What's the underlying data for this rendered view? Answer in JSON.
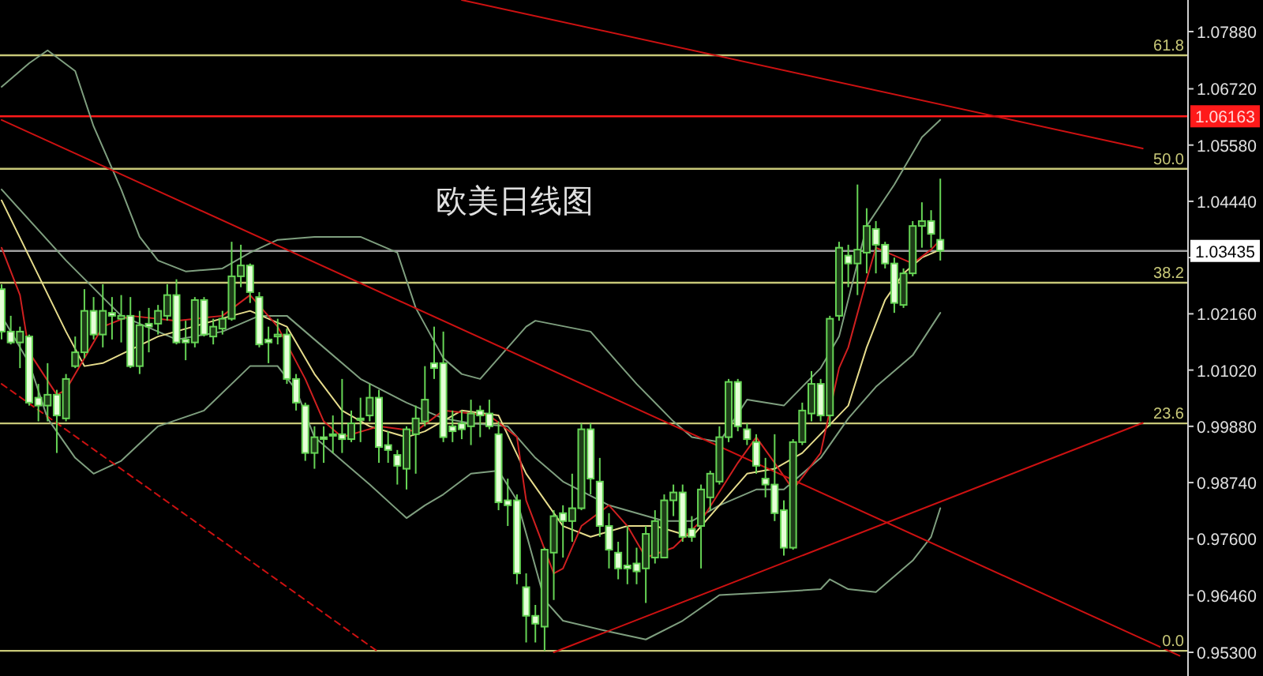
{
  "chart_data": {
    "type": "candlestick",
    "title": "欧美日线图",
    "categories": [
      null,
      null,
      null,
      null,
      null,
      null,
      null,
      null,
      null,
      null,
      null,
      null,
      null,
      null,
      null,
      null,
      null,
      null,
      null,
      null,
      null,
      null,
      null,
      null,
      null,
      null,
      null,
      null,
      null,
      null,
      null,
      null,
      null,
      null,
      null,
      null,
      null,
      null,
      null,
      null,
      null,
      null,
      null,
      null,
      null,
      null,
      null,
      null,
      null,
      null,
      null,
      null,
      null,
      null,
      null,
      null,
      null,
      null,
      null,
      null,
      null,
      null,
      null,
      null,
      null,
      null,
      null,
      null,
      null,
      null,
      null,
      null,
      null,
      null,
      null,
      null,
      null,
      null,
      null,
      null,
      null,
      null,
      null,
      null,
      null,
      null,
      null,
      null,
      null,
      null,
      null,
      null,
      null,
      null,
      null,
      null,
      null,
      null,
      null,
      null,
      null,
      null,
      null,
      null,
      null,
      null,
      null,
      null,
      null,
      null,
      null,
      null,
      null,
      null,
      null,
      null,
      null,
      null,
      null,
      null,
      null,
      null,
      null,
      null,
      null,
      null,
      null,
      null,
      null
    ],
    "ylim": [
      0.9482,
      1.0852
    ],
    "yticks": [
      {
        "value": 1.0788,
        "label": "1.07880"
      },
      {
        "value": 1.0672,
        "label": "1.06720"
      },
      {
        "value": 1.0558,
        "label": "1.05580"
      },
      {
        "value": 1.0444,
        "label": "1.04440"
      },
      {
        "value": 1.033,
        "label": null
      },
      {
        "value": 1.0216,
        "label": "1.02160"
      },
      {
        "value": 1.0102,
        "label": "1.01020"
      },
      {
        "value": 0.9988,
        "label": "0.99880"
      },
      {
        "value": 0.9874,
        "label": "0.98740"
      },
      {
        "value": 0.976,
        "label": "0.97600"
      },
      {
        "value": 0.9646,
        "label": "0.96460"
      },
      {
        "value": 0.953,
        "label": "0.95300"
      }
    ],
    "tick_labels": "y",
    "grid": false,
    "legend": false,
    "ref_lines": [
      {
        "axis": "y",
        "value": 1.074,
        "color": "#c8c878"
      },
      {
        "axis": "y",
        "value": 1.051,
        "color": "#c8c878"
      },
      {
        "axis": "y",
        "value": 1.0279,
        "color": "#c8c878"
      },
      {
        "axis": "y",
        "value": 0.9994,
        "color": "#c8c878"
      },
      {
        "axis": "y",
        "value": 0.9533,
        "color": "#c8c878"
      },
      {
        "axis": "y",
        "value": 1.06163,
        "label": "1.06163",
        "color": "#ff1a1a"
      },
      {
        "axis": "y",
        "value": 1.03435,
        "label": "1.03435",
        "color": "#a0a0a0"
      }
    ],
    "annotations": [
      {
        "text": "61.8",
        "y": 1.074
      },
      {
        "text": "50.0",
        "y": 1.051
      },
      {
        "text": "38.2",
        "y": 1.0279
      },
      {
        "text": "23.6",
        "y": 0.9994
      },
      {
        "text": "0.0",
        "y": 0.9533
      }
    ],
    "series": [
      {
        "type": "candlestick",
        "color": "#66d455",
        "ohlc": [
          [
            1.0266,
            1.0276,
            1.0164,
            1.018
          ],
          [
            1.018,
            1.0212,
            1.0154,
            1.0158
          ],
          [
            1.0158,
            1.019,
            1.0106,
            1.018
          ],
          [
            1.017,
            1.0174,
            1.003,
            1.0036
          ],
          [
            1.0046,
            1.0074,
            0.9998,
            1.003
          ],
          [
            1.003,
            1.0116,
            0.9998,
            1.0052
          ],
          [
            1.0052,
            1.0062,
            0.9934,
            1.001
          ],
          [
            1.0004,
            1.0094,
            0.9998,
            1.0084
          ],
          [
            1.011,
            1.017,
            1.0106,
            1.0138
          ],
          [
            1.0138,
            1.0266,
            1.0126,
            1.0222
          ],
          [
            1.0222,
            1.025,
            1.0164,
            1.0174
          ],
          [
            1.0174,
            1.0276,
            1.0148,
            1.0222
          ],
          [
            1.0218,
            1.025,
            1.0164,
            1.0212
          ],
          [
            1.0206,
            1.0254,
            1.0158,
            1.0212
          ],
          [
            1.0212,
            1.025,
            1.0106,
            1.011
          ],
          [
            1.011,
            1.0222,
            1.0094,
            1.0193
          ],
          [
            1.0196,
            1.0228,
            1.0138,
            1.019
          ],
          [
            1.0196,
            1.0234,
            1.0174,
            1.0222
          ],
          [
            1.0212,
            1.0276,
            1.0202,
            1.0254
          ],
          [
            1.0254,
            1.0286,
            1.0154,
            1.0158
          ],
          [
            1.0164,
            1.0202,
            1.0122,
            1.0158
          ],
          [
            1.0158,
            1.025,
            1.0148,
            1.0244
          ],
          [
            1.0244,
            1.025,
            1.017,
            1.0174
          ],
          [
            1.017,
            1.0206,
            1.0154,
            1.019
          ],
          [
            1.0186,
            1.0222,
            1.0174,
            1.0206
          ],
          [
            1.0206,
            1.0362,
            1.0202,
            1.0292
          ],
          [
            1.0292,
            1.0356,
            1.027,
            1.0314
          ],
          [
            1.0314,
            1.0318,
            1.0238,
            1.026
          ],
          [
            1.025,
            1.026,
            1.0148,
            1.0154
          ],
          [
            1.0164,
            1.019,
            1.0116,
            1.0158
          ],
          [
            1.017,
            1.0206,
            1.0154,
            1.0174
          ],
          [
            1.0174,
            1.0186,
            1.0074,
            1.0084
          ],
          [
            1.0084,
            1.0094,
            1.002,
            1.0036
          ],
          [
            1.003,
            1.0036,
            0.9918,
            0.9934
          ],
          [
            0.9934,
            0.9988,
            0.9902,
            0.9966
          ],
          [
            0.9966,
            0.9988,
            0.9914,
            0.9962
          ],
          [
            0.9969,
            1.001,
            0.9934,
            0.9972
          ],
          [
            0.9972,
            1.0084,
            0.9934,
            0.9962
          ],
          [
            0.9962,
            1.002,
            0.9956,
            0.9994
          ],
          [
            1.0004,
            1.0046,
            0.9956,
            1.0001
          ],
          [
            1.001,
            1.0074,
            0.9998,
            1.0046
          ],
          [
            1.0046,
            1.0062,
            0.9914,
            0.9946
          ],
          [
            0.995,
            0.9978,
            0.9914,
            0.994
          ],
          [
            0.993,
            0.994,
            0.987,
            0.9908
          ],
          [
            0.9902,
            0.9988,
            0.986,
            0.9982
          ],
          [
            0.9972,
            1.003,
            0.9892,
            1.0004
          ],
          [
            0.9998,
            1.011,
            0.9988,
            1.0042
          ],
          [
            1.0116,
            1.019,
            1.0084,
            1.0106
          ],
          [
            1.0116,
            1.018,
            0.9956,
            0.9966
          ],
          [
            0.9988,
            1.002,
            0.9956,
            0.9978
          ],
          [
            0.9994,
            1.002,
            0.9962,
            0.9982
          ],
          [
            0.9988,
            1.0042,
            0.995,
            1.0014
          ],
          [
            1.002,
            1.003,
            0.9966,
            1.001
          ],
          [
            1.0014,
            1.0042,
            0.9982,
            0.9988
          ],
          [
            0.9972,
            0.9998,
            0.9818,
            0.9834
          ],
          [
            0.9838,
            0.9882,
            0.9786,
            0.9828
          ],
          [
            0.9838,
            0.985,
            0.9668,
            0.969
          ],
          [
            0.9662,
            0.969,
            0.955,
            0.9604
          ],
          [
            0.9604,
            0.9626,
            0.955,
            0.9588
          ],
          [
            0.9582,
            0.9742,
            0.9533,
            0.9738
          ],
          [
            0.9732,
            0.9818,
            0.9636,
            0.9806
          ],
          [
            0.9812,
            0.9828,
            0.9722,
            0.9796
          ],
          [
            0.9796,
            0.9892,
            0.9754,
            0.9822
          ],
          [
            0.9822,
            0.9994,
            0.9818,
            0.9982
          ],
          [
            0.9982,
            0.9994,
            0.985,
            0.9882
          ],
          [
            0.9876,
            0.9924,
            0.9764,
            0.9786
          ],
          [
            0.9786,
            0.9812,
            0.97,
            0.9738
          ],
          [
            0.9732,
            0.9754,
            0.9678,
            0.97
          ],
          [
            0.9706,
            0.9786,
            0.9668,
            0.97
          ],
          [
            0.971,
            0.9742,
            0.9668,
            0.9694
          ],
          [
            0.97,
            0.9786,
            0.963,
            0.977
          ],
          [
            0.9722,
            0.9818,
            0.971,
            0.9796
          ],
          [
            0.9722,
            0.985,
            0.9722,
            0.9838
          ],
          [
            0.9838,
            0.987,
            0.9806,
            0.9854
          ],
          [
            0.9854,
            0.987,
            0.9754,
            0.9764
          ],
          [
            0.978,
            0.9806,
            0.9754,
            0.9764
          ],
          [
            0.9786,
            0.987,
            0.97,
            0.986
          ],
          [
            0.9844,
            0.9898,
            0.9818,
            0.9892
          ],
          [
            0.9876,
            0.9988,
            0.987,
            0.9966
          ],
          [
            0.9966,
            1.0084,
            0.9956,
            1.0078
          ],
          [
            1.0078,
            1.0084,
            0.9978,
            0.9988
          ],
          [
            0.9982,
            0.9994,
            0.995,
            0.9962
          ],
          [
            0.9956,
            0.9972,
            0.9892,
            0.9908
          ],
          [
            0.9882,
            0.9924,
            0.9844,
            0.987
          ],
          [
            0.987,
            0.9972,
            0.9796,
            0.9812
          ],
          [
            0.9818,
            0.9838,
            0.9726,
            0.9742
          ],
          [
            0.9742,
            0.9962,
            0.9738,
            0.9956
          ],
          [
            0.9956,
            1.0036,
            0.995,
            1.002
          ],
          [
            1.0014,
            1.01,
            0.9998,
            1.0074
          ],
          [
            1.0074,
            1.0084,
            0.9998,
            1.001
          ],
          [
            1.001,
            1.0212,
            0.9988,
            1.0206
          ],
          [
            1.0212,
            1.0362,
            1.0202,
            1.035
          ],
          [
            1.0334,
            1.0356,
            1.027,
            1.0318
          ],
          [
            1.0318,
            1.0478,
            1.0254,
            1.0346
          ],
          [
            1.034,
            1.043,
            1.0298,
            1.0394
          ],
          [
            1.0388,
            1.0404,
            1.0298,
            1.0356
          ],
          [
            1.0356,
            1.0362,
            1.0308,
            1.0318
          ],
          [
            1.0318,
            1.033,
            1.0218,
            1.0238
          ],
          [
            1.0234,
            1.0308,
            1.0228,
            1.0298
          ],
          [
            1.0298,
            1.0404,
            1.0292,
            1.0394
          ],
          [
            1.0394,
            1.0442,
            1.035,
            1.0404
          ],
          [
            1.0404,
            1.0426,
            1.035,
            1.0378
          ],
          [
            1.0366,
            1.049,
            1.0324,
            1.0344
          ],
          null,
          null,
          null,
          null,
          null,
          null,
          null,
          null,
          null,
          null,
          null,
          null,
          null,
          null,
          null,
          null,
          null,
          null,
          null,
          null,
          null,
          null,
          null,
          null,
          null,
          null
        ]
      },
      {
        "type": "line",
        "color": "#7f9f7f",
        "values": [
          1.0676,
          null,
          null,
          1.0724,
          null,
          1.075,
          null,
          null,
          1.0708,
          null,
          1.0596,
          null,
          null,
          1.0468,
          null,
          1.0372,
          null,
          1.0324,
          null,
          null,
          1.0302,
          null,
          null,
          null,
          1.0308,
          null,
          null,
          1.034,
          null,
          null,
          1.0366,
          null,
          null,
          null,
          1.0372,
          null,
          null,
          null,
          null,
          1.0372,
          null,
          null,
          null,
          1.034,
          null,
          1.0228,
          null,
          null,
          1.0126,
          null,
          1.0094,
          null,
          1.0084,
          null,
          null,
          null,
          null,
          1.019,
          1.0202,
          null,
          null,
          null,
          null,
          null,
          1.018,
          null,
          null,
          1.0116,
          null,
          1.0074,
          null,
          null,
          null,
          0.9998,
          null,
          0.9966,
          null,
          null,
          0.9956,
          null,
          null,
          1.0042,
          null,
          1.0036,
          null,
          1.003,
          null,
          null,
          null,
          1.0106,
          null,
          1.017,
          null,
          null,
          1.0394,
          null,
          null,
          1.0478,
          1.051,
          null,
          1.0574,
          null,
          1.0609,
          null,
          null,
          null,
          null,
          null,
          null,
          null,
          null,
          null,
          null,
          null,
          null,
          null,
          null,
          null,
          null,
          null,
          null,
          null,
          null,
          null,
          null,
          null,
          null,
          null,
          null
        ]
      },
      {
        "type": "line",
        "color": "#7f9f7f",
        "values": [
          1.0468,
          null,
          null,
          null,
          null,
          null,
          null,
          1.0324,
          null,
          null,
          null,
          null,
          null,
          1.0212,
          null,
          null,
          null,
          null,
          null,
          1.0164,
          null,
          null,
          null,
          null,
          1.018,
          null,
          null,
          null,
          1.0212,
          null,
          null,
          1.0212,
          null,
          null,
          1.0164,
          null,
          null,
          null,
          null,
          1.0084,
          null,
          null,
          null,
          null,
          1.0036,
          null,
          null,
          null,
          1.0004,
          null,
          null,
          0.9994,
          null,
          null,
          null,
          0.9988,
          null,
          null,
          0.9924,
          null,
          null,
          0.9876,
          null,
          null,
          null,
          null,
          0.9828,
          null,
          null,
          null,
          null,
          null,
          0.9796,
          null,
          null,
          0.9796,
          null,
          null,
          0.9828,
          null,
          null,
          null,
          0.986,
          null,
          null,
          0.986,
          null,
          null,
          null,
          0.9924,
          null,
          null,
          1.0004,
          null,
          null,
          1.0068,
          null,
          null,
          null,
          1.0132,
          null,
          null,
          1.0218,
          null,
          null,
          null,
          null,
          null,
          null,
          null,
          null,
          null,
          null,
          null,
          null,
          null,
          null,
          null,
          null,
          null,
          null,
          null,
          null,
          null,
          null,
          null,
          null,
          null,
          null
        ]
      },
      {
        "type": "line",
        "color": "#7f9f7f",
        "values": [
          1.0212,
          null,
          null,
          1.0116,
          null,
          1.0004,
          null,
          null,
          0.9924,
          null,
          0.9892,
          null,
          null,
          0.9918,
          null,
          null,
          null,
          0.9988,
          null,
          null,
          null,
          null,
          1.002,
          null,
          null,
          null,
          null,
          1.011,
          null,
          null,
          1.011,
          null,
          1.0062,
          null,
          0.9966,
          null,
          null,
          null,
          null,
          null,
          0.987,
          null,
          null,
          null,
          0.9802,
          null,
          0.9828,
          null,
          0.985,
          null,
          null,
          0.9892,
          null,
          null,
          0.9898,
          null,
          0.9838,
          null,
          null,
          0.9636,
          null,
          0.9594,
          null,
          null,
          null,
          null,
          0.9572,
          null,
          null,
          null,
          0.9556,
          null,
          null,
          null,
          0.9594,
          null,
          null,
          null,
          0.9646,
          null,
          null,
          null,
          null,
          null,
          0.9652,
          null,
          null,
          null,
          null,
          0.9658,
          0.9678,
          null,
          0.9658,
          null,
          null,
          0.9652,
          null,
          null,
          null,
          0.9716,
          null,
          0.9764,
          0.9822,
          null,
          null,
          null,
          null,
          null,
          null,
          null,
          null,
          null,
          null,
          null,
          null,
          null,
          null,
          null,
          null,
          null,
          null,
          null,
          null,
          null,
          null,
          null,
          null,
          null,
          null
        ]
      },
      {
        "type": "line",
        "color": "#e6dc8c",
        "values": [
          1.0446,
          null,
          null,
          null,
          null,
          null,
          null,
          1.018,
          null,
          1.011,
          null,
          1.0116,
          null,
          null,
          null,
          null,
          null,
          1.017,
          null,
          null,
          null,
          null,
          null,
          null,
          null,
          1.0212,
          null,
          1.0222,
          null,
          null,
          null,
          1.019,
          null,
          null,
          1.0094,
          null,
          null,
          1.002,
          null,
          null,
          0.9988,
          null,
          null,
          null,
          0.9966,
          null,
          0.9978,
          null,
          null,
          null,
          1.002,
          null,
          null,
          null,
          1.001,
          null,
          null,
          0.9892,
          null,
          null,
          null,
          0.9786,
          null,
          null,
          0.9764,
          null,
          null,
          null,
          0.9786,
          null,
          null,
          0.9786,
          null,
          null,
          null,
          0.9764,
          null,
          null,
          0.9828,
          null,
          null,
          0.9892,
          null,
          null,
          0.9902,
          null,
          null,
          0.9934,
          null,
          null,
          null,
          null,
          1.003,
          null,
          1.0148,
          null,
          1.0244,
          null,
          1.0298,
          null,
          1.033,
          null,
          1.0346,
          null,
          null,
          null,
          null,
          null,
          null,
          null,
          null,
          null,
          null,
          null,
          null,
          null,
          null,
          null,
          null,
          null,
          null,
          null,
          null,
          null,
          null,
          null,
          null,
          null,
          null
        ]
      },
      {
        "type": "line",
        "color": "#d02020",
        "values": [
          1.035,
          null,
          1.0254,
          1.0138,
          null,
          null,
          1.0052,
          1.0062,
          null,
          1.0126,
          null,
          1.019,
          null,
          null,
          1.0212,
          null,
          null,
          null,
          null,
          1.0202,
          null,
          null,
          null,
          null,
          1.0212,
          null,
          null,
          1.0254,
          null,
          null,
          1.019,
          null,
          null,
          1.0084,
          null,
          0.9998,
          null,
          0.9966,
          null,
          null,
          null,
          0.9988,
          null,
          null,
          null,
          0.9978,
          null,
          null,
          1.002,
          null,
          null,
          null,
          null,
          1.001,
          null,
          null,
          0.9966,
          0.9838,
          null,
          null,
          0.969,
          0.97,
          null,
          0.9786,
          null,
          null,
          0.9828,
          null,
          0.9786,
          null,
          0.9722,
          null,
          null,
          0.9742,
          null,
          null,
          0.9796,
          null,
          null,
          null,
          0.9914,
          null,
          0.9966,
          null,
          0.9914,
          null,
          0.986,
          null,
          null,
          0.9934,
          null,
          1.0106,
          1.0148,
          null,
          1.0286,
          1.035,
          null,
          null,
          null,
          1.0318,
          null,
          1.0346,
          1.0366,
          null,
          null,
          null,
          null,
          null,
          null,
          null,
          null,
          null,
          null,
          null,
          null,
          null,
          null,
          null,
          null,
          null,
          null,
          null,
          null,
          null,
          null,
          null,
          null,
          null,
          null
        ]
      },
      {
        "type": "line",
        "color": "#cc1111",
        "values": [
          1.0609,
          null,
          null,
          null,
          null,
          null,
          null,
          null,
          null,
          null,
          null,
          null,
          null,
          null,
          null,
          null,
          null,
          null,
          null,
          null,
          null,
          null,
          null,
          null,
          null,
          null,
          null,
          null,
          null,
          null,
          null,
          null,
          null,
          null,
          null,
          null,
          null,
          null,
          null,
          null,
          null,
          null,
          null,
          null,
          null,
          null,
          null,
          null,
          null,
          null,
          null,
          null,
          null,
          null,
          null,
          null,
          null,
          null,
          null,
          null,
          null,
          null,
          null,
          null,
          null,
          null,
          null,
          null,
          null,
          null,
          null,
          null,
          null,
          null,
          null,
          null,
          null,
          null,
          null,
          null,
          null,
          null,
          null,
          null,
          null,
          null,
          null,
          null,
          null,
          null,
          null,
          null,
          null,
          null,
          null,
          null,
          null,
          null,
          null,
          null,
          null,
          null,
          null,
          null,
          null,
          null,
          null,
          null,
          null,
          null,
          null,
          null,
          null,
          null,
          null,
          null,
          null,
          null,
          null,
          null,
          null,
          null,
          null,
          null,
          null,
          null,
          null,
          null,
          0.9523
        ]
      },
      {
        "type": "line",
        "color": "#cc1111",
        "values": [
          null,
          null,
          null,
          null,
          null,
          null,
          null,
          null,
          null,
          null,
          null,
          null,
          null,
          null,
          null,
          null,
          null,
          null,
          null,
          null,
          null,
          null,
          null,
          null,
          null,
          null,
          null,
          null,
          null,
          null,
          null,
          null,
          null,
          null,
          null,
          null,
          null,
          null,
          null,
          null,
          null,
          null,
          null,
          null,
          null,
          null,
          null,
          null,
          null,
          null,
          null,
          null,
          null,
          null,
          null,
          null,
          null,
          null,
          null,
          null,
          0.953,
          null,
          null,
          null,
          null,
          null,
          null,
          null,
          null,
          null,
          null,
          null,
          null,
          null,
          null,
          null,
          null,
          null,
          null,
          null,
          null,
          null,
          null,
          null,
          null,
          null,
          null,
          null,
          null,
          null,
          null,
          null,
          null,
          null,
          null,
          null,
          null,
          null,
          null,
          null,
          null,
          null,
          null,
          null,
          null,
          null,
          null,
          null,
          null,
          null,
          null,
          null,
          null,
          null,
          null,
          null,
          null,
          null,
          null,
          null,
          null,
          null,
          null,
          null,
          0.9995,
          null,
          null,
          null,
          null
        ]
      },
      {
        "type": "line",
        "color": "#cc1111",
        "values": [
          null,
          null,
          null,
          null,
          null,
          null,
          null,
          null,
          null,
          null,
          null,
          null,
          null,
          null,
          null,
          null,
          null,
          null,
          null,
          null,
          null,
          null,
          null,
          null,
          null,
          null,
          null,
          null,
          null,
          null,
          null,
          null,
          null,
          null,
          null,
          null,
          null,
          null,
          null,
          null,
          null,
          null,
          null,
          null,
          null,
          null,
          null,
          null,
          null,
          null,
          1.0852,
          null,
          null,
          null,
          null,
          null,
          null,
          null,
          null,
          null,
          null,
          null,
          null,
          null,
          null,
          null,
          null,
          null,
          null,
          null,
          null,
          null,
          null,
          null,
          null,
          null,
          null,
          null,
          null,
          null,
          null,
          null,
          null,
          null,
          null,
          null,
          null,
          null,
          null,
          null,
          null,
          null,
          null,
          null,
          null,
          null,
          null,
          null,
          null,
          null,
          null,
          null,
          null,
          null,
          null,
          null,
          null,
          null,
          null,
          null,
          null,
          null,
          null,
          null,
          null,
          null,
          null,
          null,
          null,
          null,
          null,
          null,
          null,
          null,
          1.0551,
          null,
          null,
          null,
          null
        ]
      },
      {
        "type": "line",
        "color": "#cc1111",
        "line_style": "dashed",
        "values": [
          1.0074,
          null,
          null,
          null,
          null,
          null,
          null,
          null,
          null,
          null,
          null,
          null,
          null,
          null,
          null,
          null,
          null,
          null,
          null,
          null,
          null,
          null,
          null,
          null,
          null,
          null,
          null,
          null,
          null,
          null,
          null,
          null,
          null,
          null,
          null,
          null,
          null,
          null,
          null,
          null,
          null,
          0.953,
          null,
          null,
          null,
          null,
          null,
          null,
          null,
          null,
          null,
          null,
          null,
          null,
          null,
          null,
          null,
          null,
          null,
          null,
          null,
          null,
          null,
          null,
          null,
          null,
          null,
          null,
          null,
          null,
          null,
          null,
          null,
          null,
          null,
          null,
          null,
          null,
          null,
          null,
          null,
          null,
          null,
          null,
          null,
          null,
          null,
          null,
          null,
          null,
          null,
          null,
          null,
          null,
          null,
          null,
          null,
          null,
          null,
          null,
          null,
          null,
          null,
          null,
          null,
          null,
          null,
          null,
          null,
          null,
          null,
          null,
          null,
          null,
          null,
          null,
          null,
          null,
          null,
          null,
          null,
          null,
          null,
          null,
          null,
          null,
          null,
          null,
          null
        ]
      }
    ]
  }
}
